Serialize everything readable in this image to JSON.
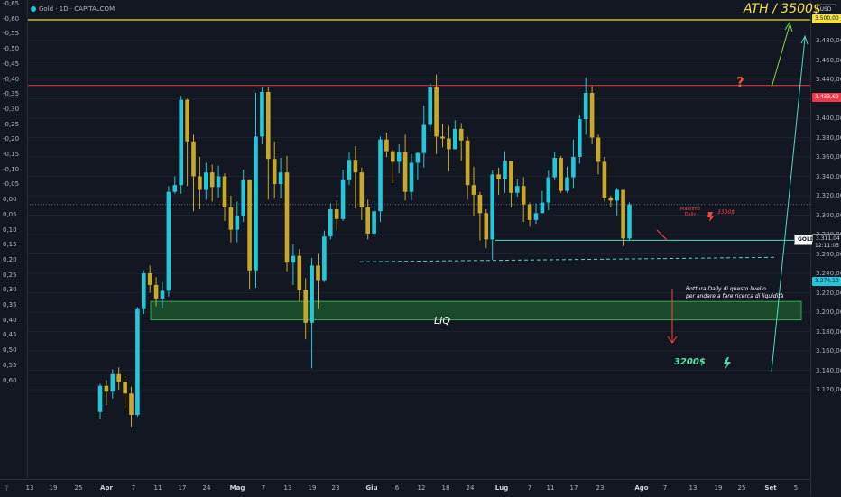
{
  "header": {
    "symbol_title": "Gold · 1D · CAPITALCOM",
    "currency": "USD"
  },
  "annotations": {
    "ath": "ATH / 3500$",
    "question": "?",
    "liq": "LIQ",
    "zone": "3200$",
    "note_line1": "Rottura Daily di questo livello",
    "note_line2": "per andare a fare ricerca di liquidità",
    "red_small_1": "Massimo",
    "red_small_2": "Daily",
    "red_price": "3330$"
  },
  "price_tags": {
    "ath": "3.500,00",
    "resistance": "3.433,69",
    "gold_label": "GOLD",
    "last_price": "3.311,04",
    "countdown": "12:11:05",
    "support": "3.274,10"
  },
  "left_axis": [
    "-0,65",
    "-0,60",
    "-0,55",
    "-0,50",
    "-0,45",
    "-0,40",
    "-0,35",
    "-0,30",
    "-0,25",
    "-0,20",
    "-0,15",
    "-0,10",
    "-0,05",
    "0,00",
    "0,05",
    "0,10",
    "0,15",
    "0,20",
    "0,25",
    "0,30",
    "0,35",
    "0,40",
    "0,45",
    "0,50",
    "0,55",
    "0,60"
  ],
  "right_axis": [
    "3.480,00",
    "3.460,00",
    "3.440,00",
    "3.420,00",
    "3.400,00",
    "3.380,00",
    "3.360,00",
    "3.340,00",
    "3.320,00",
    "3.300,00",
    "3.280,00",
    "3.260,00",
    "3.240,00",
    "3.220,00",
    "3.200,00",
    "3.180,00",
    "3.160,00",
    "3.140,00",
    "3.120,00"
  ],
  "colors": {
    "bull": "#26c6da",
    "bear": "#c7a82b",
    "resistance": "#f23645",
    "ath_line": "#e8d935",
    "support": "#4dd9c0",
    "zone": "#1f5c2e"
  },
  "chart_data": {
    "type": "candlestick",
    "title": "Gold · 1D · CAPITALCOM",
    "x_tick_labels": [
      "13",
      "19",
      "25",
      "Apr",
      "7",
      "11",
      "17",
      "24",
      "Mag",
      "7",
      "13",
      "19",
      "23",
      "Giu",
      "6",
      "12",
      "18",
      "24",
      "Lug",
      "7",
      "11",
      "17",
      "23",
      "Ago",
      "7",
      "13",
      "19",
      "25",
      "Set",
      "5"
    ],
    "y_range": [
      3110,
      3510
    ],
    "levels": {
      "ath": 3500.0,
      "resistance": 3433.69,
      "support": 3274.1,
      "liq": 3250,
      "zone_low": 3192,
      "zone_high": 3211
    },
    "candles": [
      [
        3097,
        3124,
        3090,
        3126
      ],
      [
        3124,
        3118,
        3104,
        3130
      ],
      [
        3118,
        3136,
        3111,
        3141
      ],
      [
        3136,
        3128,
        3120,
        3143
      ],
      [
        3128,
        3116,
        3101,
        3134
      ],
      [
        3116,
        3094,
        3082,
        3123
      ],
      [
        3094,
        3203,
        3092,
        3205
      ],
      [
        3203,
        3240,
        3198,
        3243
      ],
      [
        3240,
        3228,
        3220,
        3248
      ],
      [
        3228,
        3214,
        3206,
        3236
      ],
      [
        3214,
        3222,
        3204,
        3231
      ],
      [
        3222,
        3324,
        3216,
        3330
      ],
      [
        3324,
        3331,
        3322,
        3340
      ],
      [
        3331,
        3419,
        3322,
        3423
      ],
      [
        3419,
        3376,
        3330,
        3420
      ],
      [
        3376,
        3340,
        3304,
        3383
      ],
      [
        3340,
        3326,
        3306,
        3360
      ],
      [
        3326,
        3344,
        3316,
        3354
      ],
      [
        3344,
        3329,
        3314,
        3352
      ],
      [
        3329,
        3340,
        3318,
        3351
      ],
      [
        3340,
        3308,
        3294,
        3343
      ],
      [
        3308,
        3285,
        3272,
        3320
      ],
      [
        3285,
        3299,
        3272,
        3314
      ],
      [
        3299,
        3336,
        3293,
        3347
      ],
      [
        3336,
        3243,
        3224,
        3336
      ],
      [
        3243,
        3381,
        3225,
        3426
      ],
      [
        3381,
        3427,
        3373,
        3432
      ],
      [
        3427,
        3358,
        3316,
        3432
      ],
      [
        3358,
        3332,
        3317,
        3376
      ],
      [
        3332,
        3344,
        3318,
        3359
      ],
      [
        3344,
        3251,
        3242,
        3361
      ],
      [
        3251,
        3258,
        3228,
        3270
      ],
      [
        3258,
        3223,
        3211,
        3265
      ],
      [
        3223,
        3189,
        3172,
        3235
      ],
      [
        3189,
        3248,
        3142,
        3256
      ],
      [
        3248,
        3233,
        3203,
        3260
      ],
      [
        3233,
        3278,
        3231,
        3284
      ],
      [
        3278,
        3306,
        3275,
        3312
      ],
      [
        3306,
        3296,
        3284,
        3315
      ],
      [
        3296,
        3336,
        3294,
        3347
      ],
      [
        3336,
        3357,
        3331,
        3365
      ],
      [
        3357,
        3344,
        3307,
        3371
      ],
      [
        3344,
        3308,
        3295,
        3349
      ],
      [
        3308,
        3281,
        3275,
        3316
      ],
      [
        3281,
        3304,
        3277,
        3314
      ],
      [
        3304,
        3378,
        3293,
        3381
      ],
      [
        3378,
        3366,
        3360,
        3385
      ],
      [
        3366,
        3355,
        3333,
        3368
      ],
      [
        3355,
        3365,
        3343,
        3373
      ],
      [
        3365,
        3324,
        3315,
        3383
      ],
      [
        3324,
        3354,
        3315,
        3363
      ],
      [
        3354,
        3364,
        3336,
        3365
      ],
      [
        3364,
        3393,
        3349,
        3413
      ],
      [
        3393,
        3432,
        3386,
        3436
      ],
      [
        3432,
        3381,
        3363,
        3445
      ],
      [
        3381,
        3379,
        3370,
        3394
      ],
      [
        3379,
        3368,
        3345,
        3392
      ],
      [
        3368,
        3389,
        3368,
        3398
      ],
      [
        3389,
        3377,
        3356,
        3395
      ],
      [
        3377,
        3331,
        3316,
        3381
      ],
      [
        3331,
        3321,
        3299,
        3350
      ],
      [
        3321,
        3302,
        3274,
        3324
      ],
      [
        3302,
        3275,
        3266,
        3306
      ],
      [
        3275,
        3342,
        3254,
        3346
      ],
      [
        3342,
        3337,
        3321,
        3349
      ],
      [
        3337,
        3356,
        3323,
        3366
      ],
      [
        3356,
        3323,
        3308,
        3356
      ],
      [
        3323,
        3330,
        3319,
        3337
      ],
      [
        3330,
        3311,
        3293,
        3339
      ],
      [
        3311,
        3295,
        3288,
        3313
      ],
      [
        3295,
        3302,
        3291,
        3312
      ],
      [
        3302,
        3313,
        3304,
        3325
      ],
      [
        3313,
        3339,
        3305,
        3346
      ],
      [
        3339,
        3359,
        3336,
        3365
      ],
      [
        3359,
        3325,
        3323,
        3361
      ],
      [
        3325,
        3339,
        3323,
        3350
      ],
      [
        3339,
        3360,
        3328,
        3378
      ],
      [
        3360,
        3399,
        3353,
        3403
      ],
      [
        3399,
        3426,
        3383,
        3442
      ],
      [
        3426,
        3380,
        3373,
        3433
      ],
      [
        3380,
        3355,
        3342,
        3383
      ],
      [
        3355,
        3318,
        3314,
        3360
      ],
      [
        3318,
        3315,
        3308,
        3320
      ],
      [
        3315,
        3326,
        3299,
        3328
      ],
      [
        3326,
        3276,
        3268,
        3326
      ],
      [
        3276,
        3311,
        3274,
        3313
      ]
    ]
  }
}
